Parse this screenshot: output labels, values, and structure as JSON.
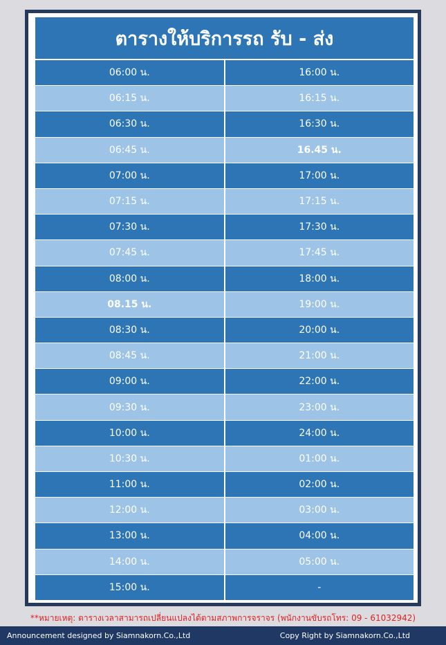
{
  "header": {
    "title": "ตารางให้บริการรถ รับ - ส่ง"
  },
  "table": {
    "rows": [
      [
        "06:00 น.",
        "16:00 น."
      ],
      [
        "06:15 น.",
        "16:15 น."
      ],
      [
        "06:30 น.",
        "16:30 น."
      ],
      [
        "06:45 น.",
        "16.45 น."
      ],
      [
        "07:00 น.",
        "17:00 น."
      ],
      [
        "07:15 น.",
        "17:15 น."
      ],
      [
        "07:30 น.",
        "17:30 น."
      ],
      [
        "07:45 น.",
        "17:45 น."
      ],
      [
        "08:00 น.",
        "18:00 น."
      ],
      [
        "08.15 น.",
        "19:00 น."
      ],
      [
        "08:30 น.",
        "20:00 น."
      ],
      [
        "08:45 น.",
        "21:00 น."
      ],
      [
        "09:00 น.",
        "22:00 น."
      ],
      [
        "09:30 น.",
        "23:00 น."
      ],
      [
        "10:00 น.",
        "24:00 น."
      ],
      [
        "10:30 น.",
        "01:00 น."
      ],
      [
        "11:00 น.",
        "02:00 น."
      ],
      [
        "12:00 น.",
        "03:00 น."
      ],
      [
        "13:00 น.",
        "04:00 น."
      ],
      [
        "14:00 น.",
        "05:00 น."
      ],
      [
        "15:00 น.",
        "-"
      ]
    ]
  },
  "note": "**หมายเหตุ: ตารางเวลาสามารถเปลี่ยนแปลงได้ตามสภาพการจราจร (พนักงานขับรถโทร: 09 - 61032942)",
  "footer": {
    "left": "Announcement designed by Siamnakorn.Co.,Ltd",
    "right": "Copy Right by Siamnakorn.Co.,Ltd"
  }
}
